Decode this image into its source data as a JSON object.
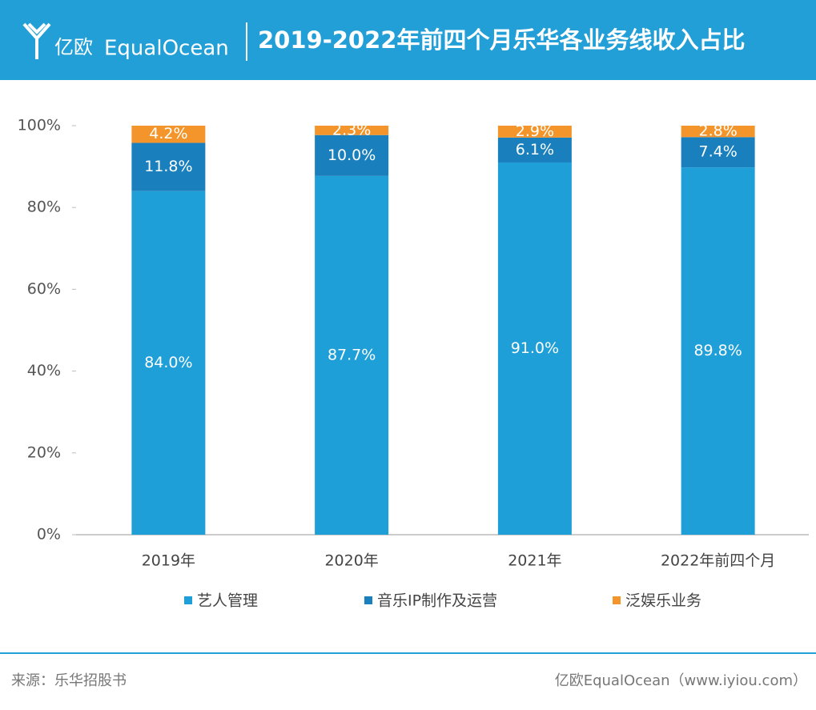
{
  "header": {
    "logo_cn": "亿欧",
    "logo_en": "EqualOcean"
  },
  "chart_data": {
    "type": "stacked_bar",
    "title": "2019-2022年前四个月乐华各业务线收入占比",
    "categories": [
      "2019年",
      "2020年",
      "2021年",
      "2022年前四个月"
    ],
    "series": [
      {
        "name": "艺人管理",
        "color": "#1f9fd8",
        "values": [
          84.0,
          87.7,
          91.0,
          89.8
        ],
        "value_labels": [
          "84.0%",
          "87.7%",
          "91.0%",
          "89.8%"
        ]
      },
      {
        "name": "音乐IP制作及运营",
        "color": "#1a80bd",
        "values": [
          11.8,
          10.0,
          6.1,
          7.4
        ],
        "value_labels": [
          "11.8%",
          "10.0%",
          "6.1%",
          "7.4%"
        ]
      },
      {
        "name": "泛娱乐业务",
        "color": "#f3952b",
        "values": [
          4.2,
          2.3,
          2.9,
          2.8
        ],
        "value_labels": [
          "4.2%",
          "2.3%",
          "2.9%",
          "2.8%"
        ]
      }
    ],
    "ylim": [
      0,
      100
    ],
    "yticks": [
      {
        "value": 0,
        "label": "0%"
      },
      {
        "value": 20,
        "label": "20%"
      },
      {
        "value": 40,
        "label": "40%"
      },
      {
        "value": 60,
        "label": "60%"
      },
      {
        "value": 80,
        "label": "80%"
      },
      {
        "value": 100,
        "label": "100%"
      }
    ],
    "grid": false
  },
  "footer": {
    "source": "来源：乐华招股书",
    "credit": "亿欧EqualOcean（www.iyiou.com）"
  }
}
